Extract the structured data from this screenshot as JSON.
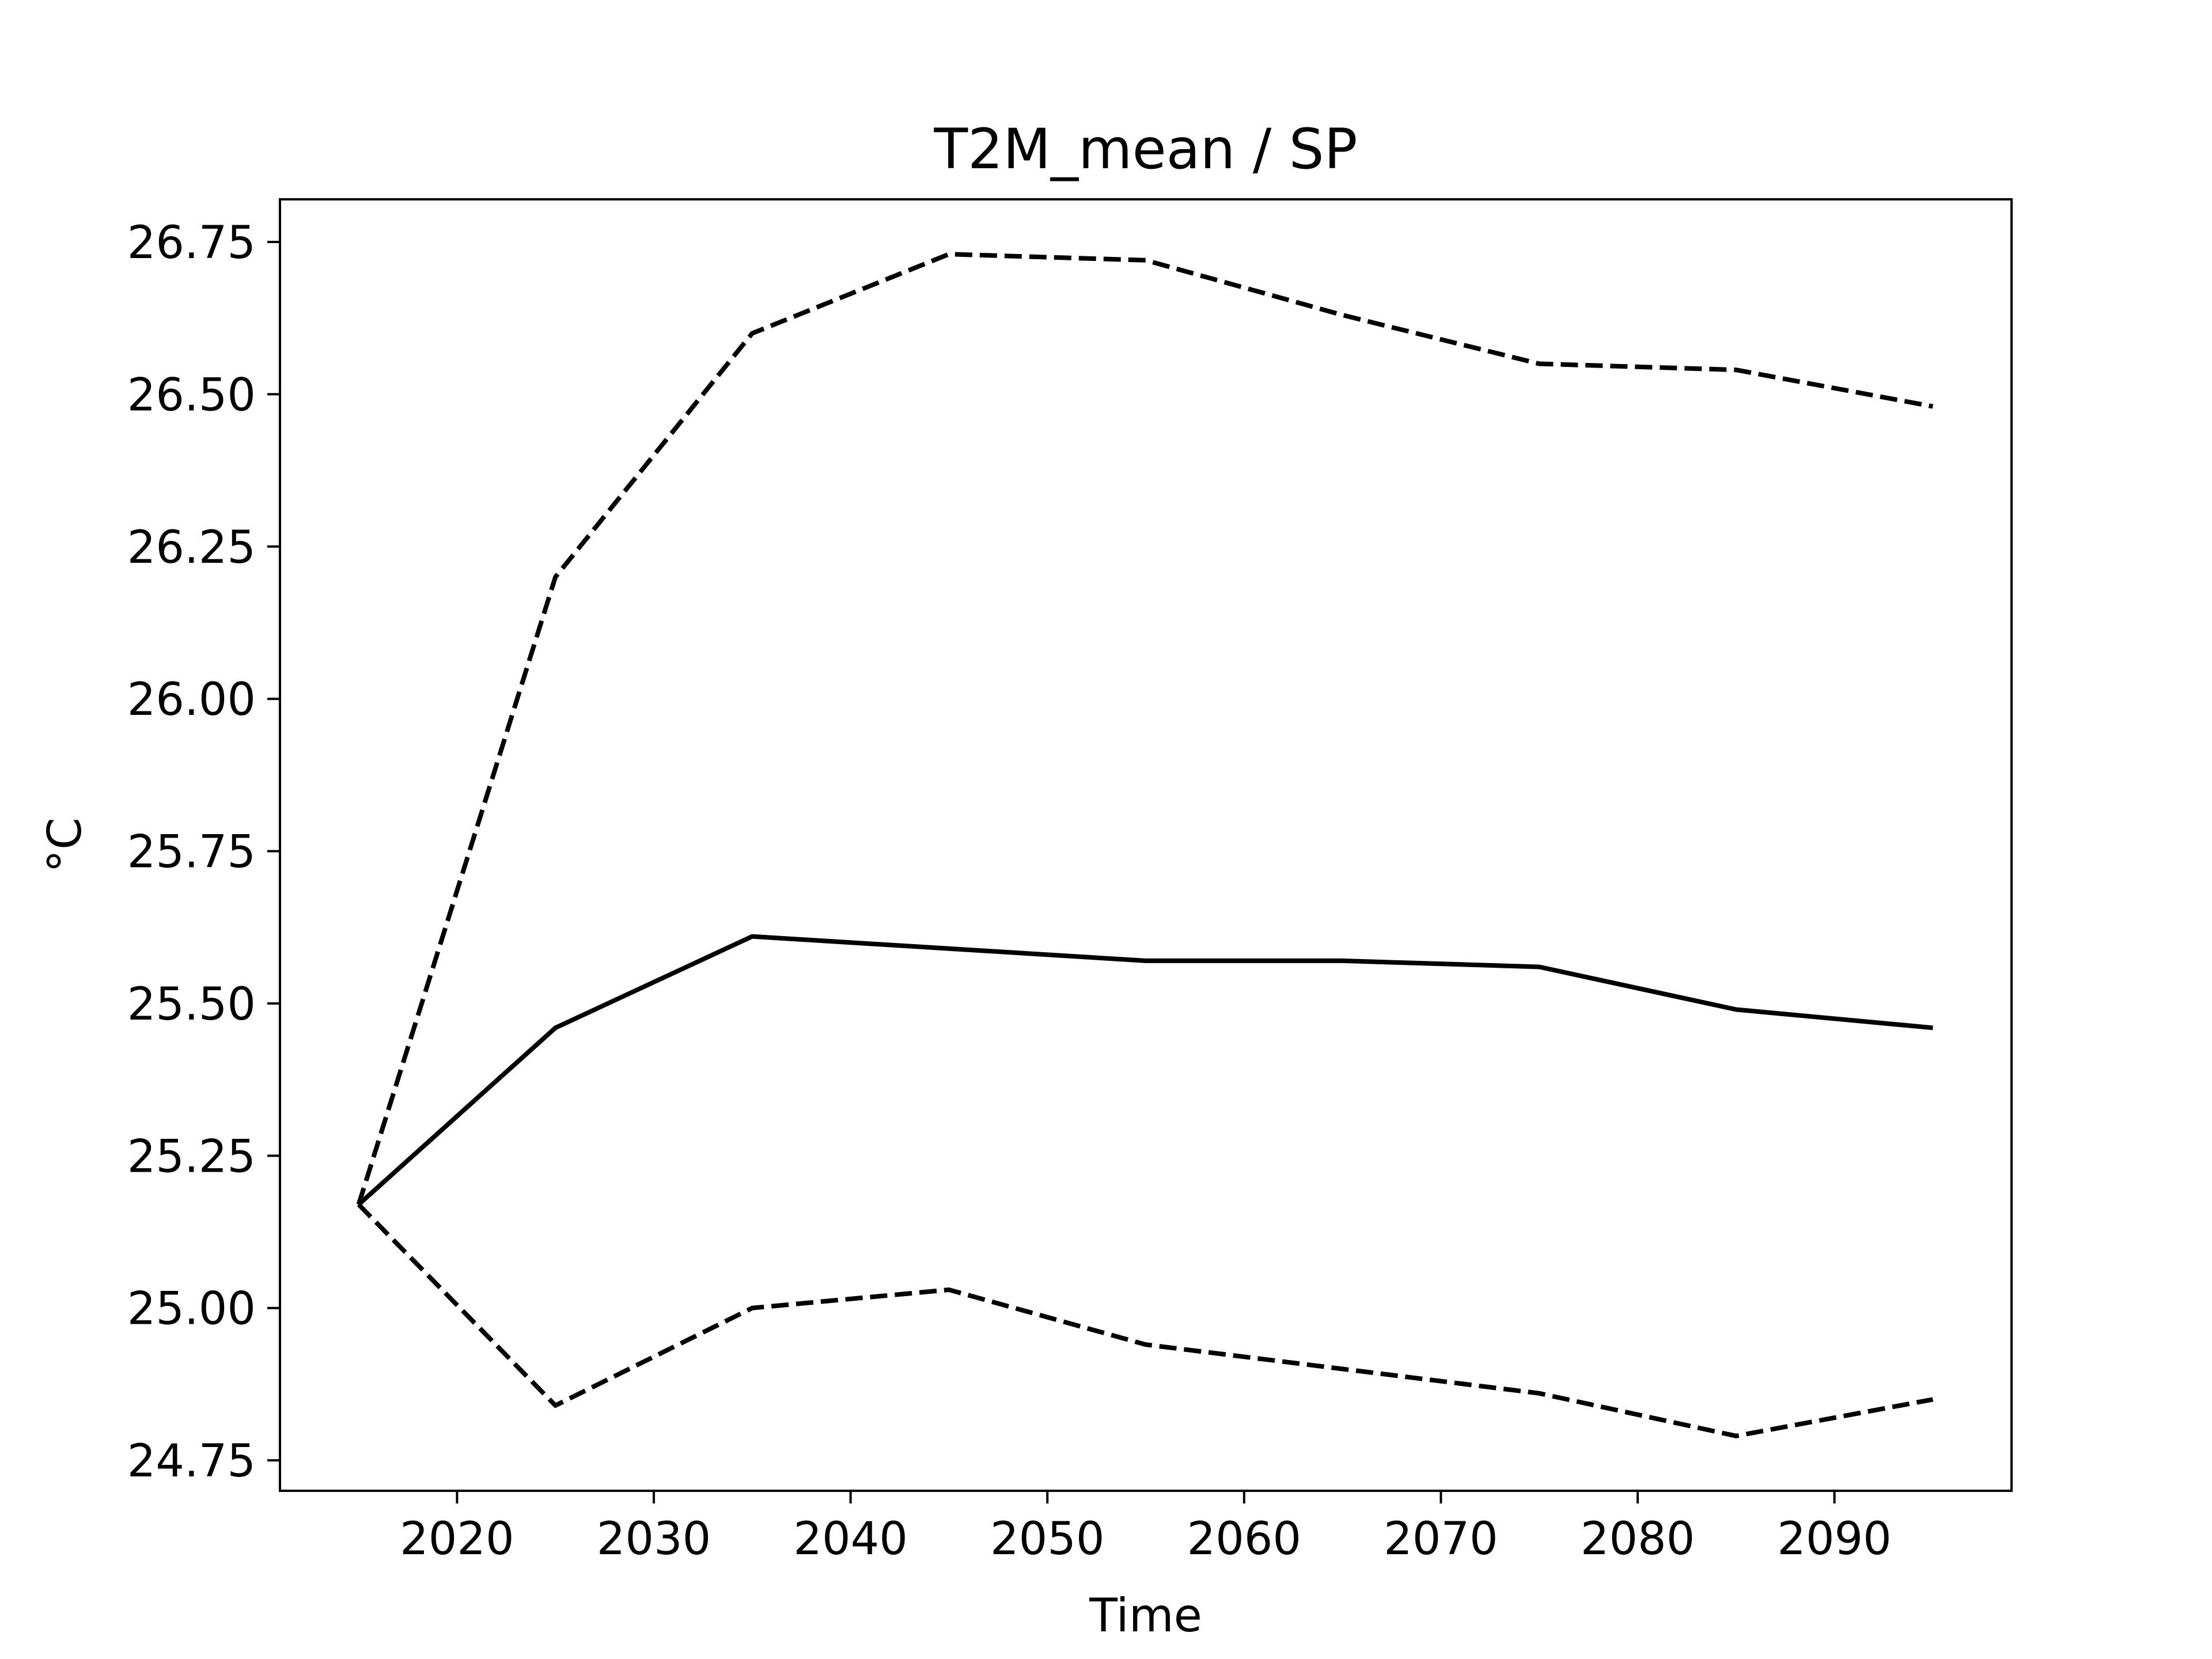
{
  "chart_data": {
    "type": "line",
    "title": "T2M_mean / SP",
    "xlabel": "Time",
    "ylabel": "°C",
    "xlim": [
      2011,
      2099
    ],
    "ylim": [
      24.7,
      26.82
    ],
    "xticks": [
      2020,
      2030,
      2040,
      2050,
      2060,
      2070,
      2080,
      2090
    ],
    "yticks": [
      24.75,
      25.0,
      25.25,
      25.5,
      25.75,
      26.0,
      26.25,
      26.5,
      26.75
    ],
    "ytick_labels": [
      "24.75",
      "25.00",
      "25.25",
      "25.50",
      "25.75",
      "26.00",
      "26.25",
      "26.50",
      "26.75"
    ],
    "grid": false,
    "x": [
      2015,
      2025,
      2035,
      2045,
      2055,
      2065,
      2075,
      2085,
      2095
    ],
    "series": [
      {
        "style": "solid",
        "color": "#000000",
        "values": [
          25.17,
          25.46,
          25.61,
          25.59,
          25.57,
          25.57,
          25.56,
          25.49,
          25.46
        ]
      },
      {
        "style": "dashed",
        "color": "#000000",
        "values": [
          25.17,
          26.2,
          26.6,
          26.73,
          26.72,
          26.63,
          26.55,
          26.54,
          26.48
        ]
      },
      {
        "style": "dashed",
        "color": "#000000",
        "values": [
          25.17,
          24.84,
          25.0,
          25.03,
          24.94,
          24.9,
          24.86,
          24.79,
          24.85
        ]
      }
    ]
  }
}
